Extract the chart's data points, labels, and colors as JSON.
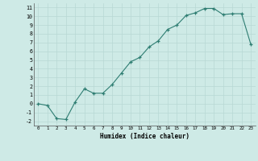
{
  "x": [
    0,
    1,
    2,
    3,
    4,
    5,
    6,
    7,
    8,
    9,
    10,
    11,
    12,
    13,
    14,
    15,
    16,
    17,
    18,
    19,
    20,
    21,
    22,
    23
  ],
  "y": [
    0,
    -0.2,
    -1.7,
    -1.8,
    0.2,
    1.7,
    1.2,
    1.2,
    2.2,
    3.5,
    4.8,
    5.3,
    6.5,
    7.2,
    8.5,
    9.0,
    10.1,
    10.4,
    10.9,
    10.9,
    10.2,
    10.3,
    10.3,
    6.8
  ],
  "xlabel": "Humidex (Indice chaleur)",
  "ylim": [
    -2.5,
    11.5
  ],
  "xlim": [
    -0.5,
    23.5
  ],
  "yticks": [
    -2,
    -1,
    0,
    1,
    2,
    3,
    4,
    5,
    6,
    7,
    8,
    9,
    10,
    11
  ],
  "xticks": [
    0,
    1,
    2,
    3,
    4,
    5,
    6,
    7,
    8,
    9,
    10,
    11,
    12,
    13,
    14,
    15,
    16,
    17,
    18,
    19,
    20,
    21,
    22,
    23
  ],
  "line_color": "#2e7d72",
  "bg_color": "#ceeae6",
  "grid_color": "#b8d8d4",
  "marker": "+"
}
